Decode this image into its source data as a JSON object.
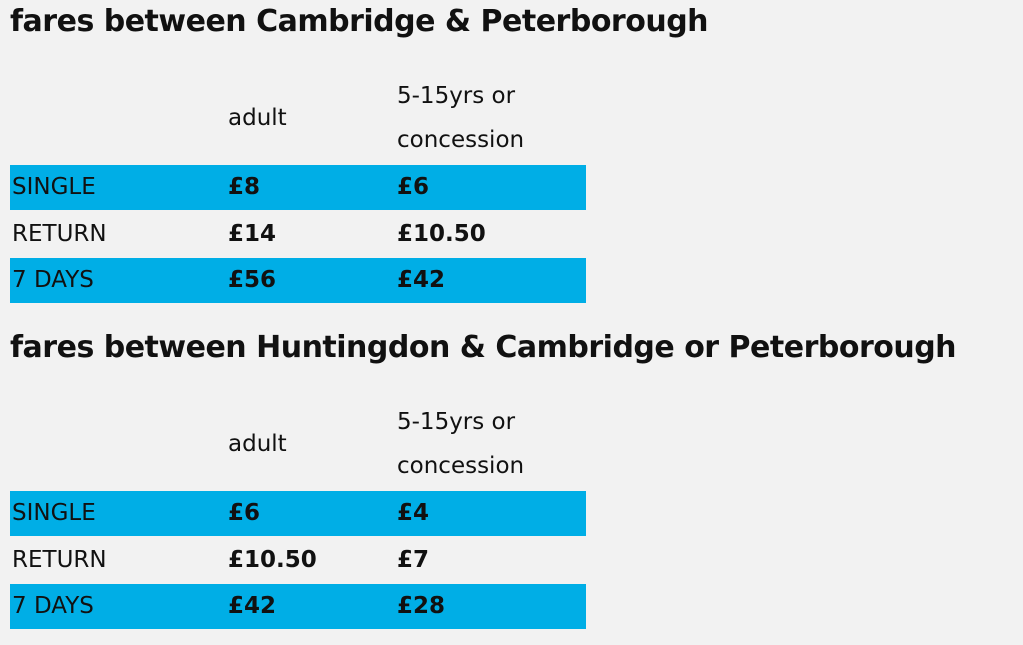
{
  "sections": [
    {
      "title": "fares between Cambridge & Peterborough",
      "columns": [
        "adult",
        "5-15yrs or concession"
      ],
      "rows": [
        {
          "label": "SINGLE",
          "fares": [
            "£8",
            "£6"
          ]
        },
        {
          "label": "RETURN",
          "fares": [
            "£14",
            "£10.50"
          ]
        },
        {
          "label": "7 DAYS",
          "fares": [
            "£56",
            "£42"
          ]
        }
      ]
    },
    {
      "title": "fares between Huntingdon & Cambridge or Peterborough",
      "columns": [
        "adult",
        "5-15yrs or concession"
      ],
      "rows": [
        {
          "label": "SINGLE",
          "fares": [
            "£6",
            "£4"
          ]
        },
        {
          "label": "RETURN",
          "fares": [
            "£10.50",
            "£7"
          ]
        },
        {
          "label": "7 DAYS",
          "fares": [
            "£42",
            "£28"
          ]
        }
      ]
    }
  ]
}
